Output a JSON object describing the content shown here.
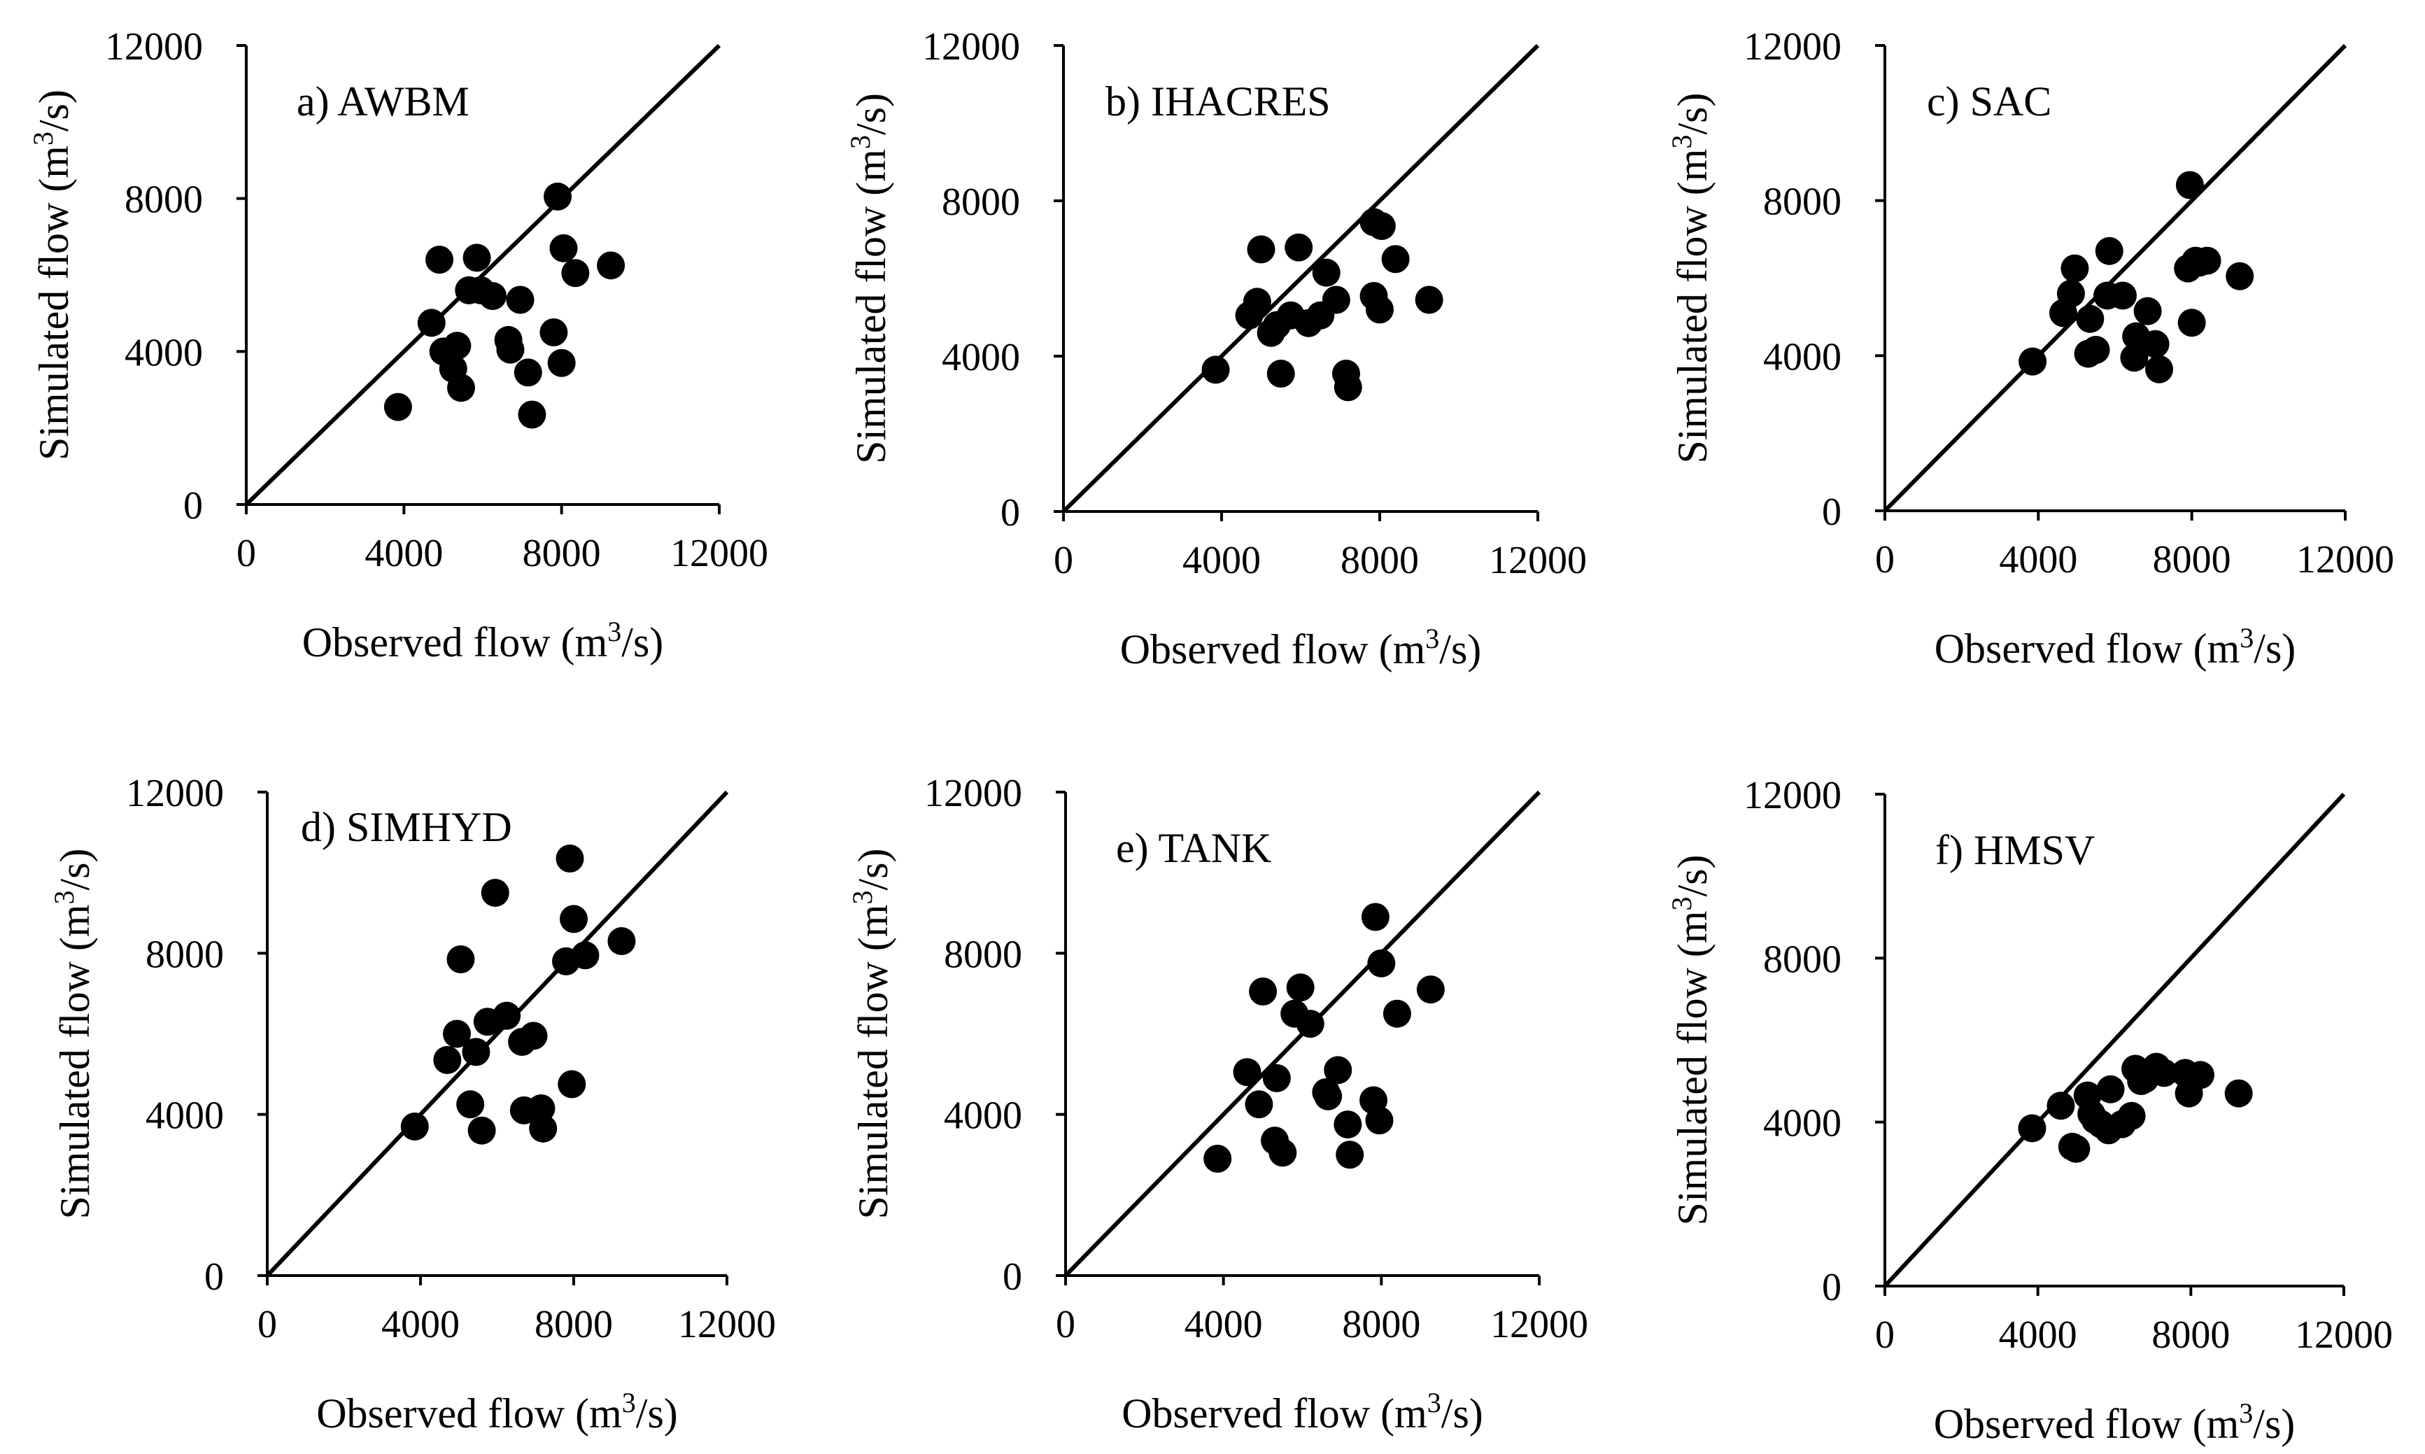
{
  "chart_data": [
    {
      "type": "scatter",
      "title": "a) AWBM",
      "xlabel": "Observed flow (m3/s)",
      "ylabel": "Simulated flow (m3/s)",
      "xlim": [
        0,
        12000
      ],
      "ylim": [
        0,
        12000
      ],
      "xticks": [
        "0",
        "4000",
        "8000",
        "12000"
      ],
      "yticks": [
        "0",
        "4000",
        "8000",
        "12000"
      ],
      "reference_line": "1:1",
      "x": [
        3850,
        4700,
        4900,
        5000,
        5250,
        5350,
        5450,
        5650,
        5850,
        5950,
        6250,
        6650,
        6700,
        6950,
        7150,
        7250,
        7800,
        7900,
        8000,
        8050,
        8350,
        9250
      ],
      "y": [
        2550,
        4750,
        6400,
        4000,
        3550,
        4150,
        3050,
        5600,
        6450,
        5600,
        5450,
        4300,
        4050,
        5350,
        3450,
        2350,
        4500,
        8050,
        3700,
        6700,
        6050,
        6250
      ]
    },
    {
      "type": "scatter",
      "title": "b) IHACRES",
      "xlabel": "Observed flow (m3/s)",
      "ylabel": "Simulated flow (m3/s)",
      "xlim": [
        0,
        12000
      ],
      "ylim": [
        0,
        12000
      ],
      "xticks": [
        "0",
        "4000",
        "8000",
        "12000"
      ],
      "yticks": [
        "0",
        "4000",
        "8000",
        "12000"
      ],
      "reference_line": "1:1",
      "x": [
        3850,
        4700,
        4900,
        5000,
        5250,
        5400,
        5500,
        5750,
        5950,
        6200,
        6500,
        6650,
        6900,
        7150,
        7200,
        7850,
        7850,
        8000,
        8050,
        8400,
        9250
      ],
      "y": [
        3650,
        5050,
        5400,
        6750,
        4600,
        4800,
        3550,
        5050,
        6800,
        4850,
        5050,
        6150,
        5450,
        3550,
        3200,
        7450,
        5550,
        5200,
        7350,
        6500,
        5450
      ]
    },
    {
      "type": "scatter",
      "title": "c) SAC",
      "xlabel": "Observed flow (m3/s)",
      "ylabel": "Simulated flow (m3/s)",
      "xlim": [
        0,
        12000
      ],
      "ylim": [
        0,
        12000
      ],
      "xticks": [
        "0",
        "4000",
        "8000",
        "12000"
      ],
      "yticks": [
        "0",
        "4000",
        "8000",
        "12000"
      ],
      "reference_line": "1:1",
      "x": [
        3850,
        4650,
        4850,
        4950,
        5300,
        5350,
        5500,
        5800,
        5850,
        6200,
        6500,
        6550,
        6850,
        7050,
        7150,
        7900,
        7950,
        8000,
        8100,
        8200,
        8400,
        9250
      ],
      "y": [
        3850,
        5100,
        5600,
        6250,
        4050,
        4950,
        4150,
        5550,
        6700,
        5550,
        3950,
        4500,
        5150,
        4300,
        3650,
        6250,
        8400,
        4850,
        6450,
        6400,
        6450,
        6050
      ]
    },
    {
      "type": "scatter",
      "title": "d) SIMHYD",
      "xlabel": "Observed flow (m3/s)",
      "ylabel": "Simulated flow (m3/s)",
      "xlim": [
        0,
        12000
      ],
      "ylim": [
        0,
        12000
      ],
      "xticks": [
        "0",
        "4000",
        "8000",
        "12000"
      ],
      "yticks": [
        "0",
        "4000",
        "8000",
        "12000"
      ],
      "reference_line": "1:1",
      "x": [
        3850,
        4700,
        4950,
        5050,
        5300,
        5450,
        5600,
        5750,
        5950,
        6250,
        6650,
        6700,
        6950,
        7150,
        7200,
        7800,
        7900,
        7950,
        8000,
        8300,
        9250
      ],
      "y": [
        3700,
        5350,
        6000,
        7850,
        4250,
        5550,
        3600,
        6300,
        9500,
        6450,
        5800,
        4100,
        5950,
        4150,
        3650,
        7800,
        10350,
        4750,
        8850,
        7950,
        8300
      ]
    },
    {
      "type": "scatter",
      "title": "e) TANK",
      "xlabel": "Observed flow (m3/s)",
      "ylabel": "Simulated flow (m3/s)",
      "xlim": [
        0,
        12000
      ],
      "ylim": [
        0,
        12000
      ],
      "xticks": [
        "0",
        "4000",
        "8000",
        "12000"
      ],
      "yticks": [
        "0",
        "4000",
        "8000",
        "12000"
      ],
      "reference_line": "1:1",
      "x": [
        3850,
        4600,
        4900,
        5000,
        5300,
        5350,
        5500,
        5800,
        5950,
        6200,
        6600,
        6650,
        6900,
        7150,
        7200,
        7850,
        7800,
        7950,
        8000,
        8400,
        9250
      ],
      "y": [
        2900,
        5050,
        4250,
        7050,
        3350,
        4900,
        3050,
        6500,
        7150,
        6250,
        4550,
        4450,
        5100,
        3750,
        3000,
        8900,
        4350,
        3850,
        7750,
        6500,
        7100
      ]
    },
    {
      "type": "scatter",
      "title": "f) HMSV",
      "xlabel": "Observed flow (m3/s)",
      "ylabel": "Simulated flow (m3/s)",
      "xlim": [
        0,
        12000
      ],
      "ylim": [
        0,
        12000
      ],
      "xticks": [
        "0",
        "4000",
        "8000",
        "12000"
      ],
      "yticks": [
        "0",
        "4000",
        "8000",
        "12000"
      ],
      "reference_line": "1:1",
      "x": [
        3850,
        4600,
        4900,
        5000,
        5300,
        5400,
        5500,
        5650,
        5850,
        5900,
        6200,
        6450,
        6550,
        6700,
        6800,
        7100,
        7300,
        7850,
        7950,
        8000,
        8250,
        9250
      ],
      "y": [
        3850,
        4400,
        3400,
        3350,
        4650,
        4200,
        4050,
        3950,
        3800,
        4800,
        3950,
        4150,
        5300,
        5000,
        5050,
        5350,
        5200,
        5200,
        4700,
        5000,
        5150,
        4700
      ]
    }
  ]
}
